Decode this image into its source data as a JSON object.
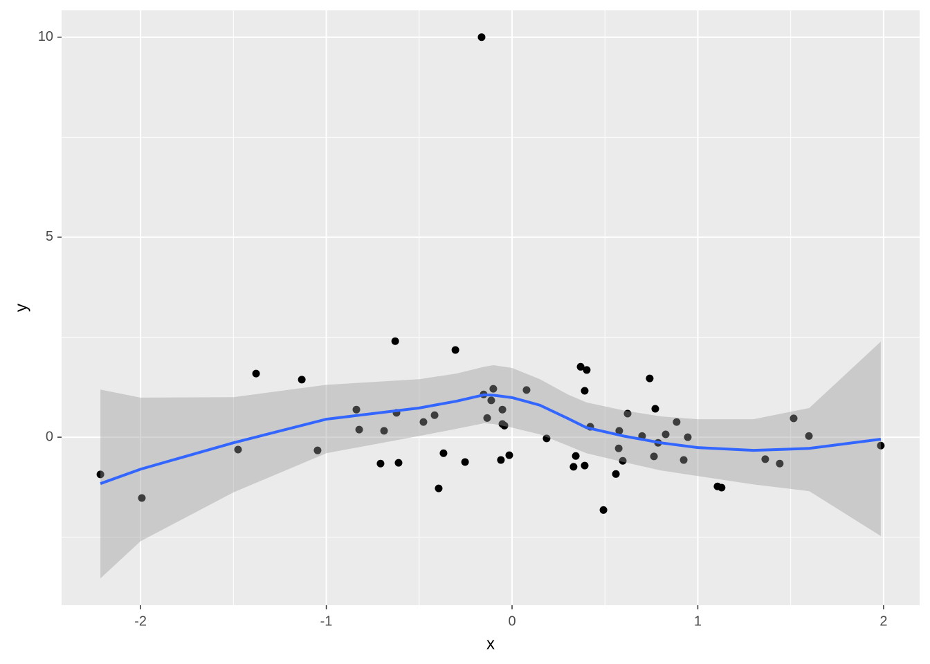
{
  "chart_data": {
    "type": "scatter",
    "x_label": "x",
    "y_label": "y",
    "xlim": [
      -2.425,
      2.194
    ],
    "ylim": [
      -4.2,
      10.67
    ],
    "xticks": [
      -2,
      -1,
      0,
      1,
      2
    ],
    "yticks": [
      0,
      5,
      10
    ],
    "grid": true,
    "series": [
      {
        "color": "#000000",
        "x": [
          -2.216,
          -1.993,
          -1.475,
          -1.378,
          -1.132,
          -1.047,
          -0.838,
          -0.823,
          -0.708,
          -0.689,
          -0.629,
          -0.622,
          -0.611,
          -0.477,
          -0.417,
          -0.395,
          -0.369,
          -0.305,
          -0.253,
          -0.164,
          -0.153,
          -0.134,
          -0.112,
          -0.101,
          -0.06,
          -0.052,
          -0.052,
          -0.041,
          -0.015,
          0.078,
          0.186,
          0.331,
          0.343,
          0.369,
          0.391,
          0.391,
          0.402,
          0.421,
          0.492,
          0.559,
          0.574,
          0.577,
          0.596,
          0.622,
          0.7,
          0.741,
          0.764,
          0.771,
          0.786,
          0.827,
          0.886,
          0.924,
          0.946,
          1.106,
          1.128,
          1.363,
          1.441,
          1.516,
          1.598,
          1.985
        ],
        "values": [
          -0.93,
          -1.52,
          -0.31,
          1.59,
          1.44,
          -0.33,
          0.69,
          0.19,
          -0.66,
          0.16,
          2.4,
          0.61,
          -0.64,
          0.38,
          0.55,
          -1.28,
          -0.4,
          2.18,
          -0.62,
          10.0,
          1.07,
          0.48,
          0.92,
          1.21,
          -0.57,
          0.69,
          0.33,
          0.29,
          -0.45,
          1.18,
          -0.03,
          -0.74,
          -0.47,
          1.76,
          -0.71,
          1.16,
          1.68,
          0.26,
          -1.82,
          -0.92,
          -0.28,
          0.16,
          -0.59,
          0.59,
          0.03,
          1.47,
          -0.48,
          0.71,
          -0.14,
          0.07,
          0.38,
          -0.57,
          0.0,
          -1.23,
          -1.26,
          -0.55,
          -0.66,
          0.47,
          0.03,
          -0.21
        ]
      },
      {
        "type": "smooth",
        "color": "#3366ff",
        "band_color": "#999999",
        "x": [
          -2.216,
          -2,
          -1.5,
          -1,
          -0.5,
          -0.3,
          -0.15,
          -0.1,
          0,
          0.15,
          0.3,
          0.4,
          0.6,
          0.8,
          1,
          1.3,
          1.6,
          1.985
        ],
        "values": [
          -1.16,
          -0.8,
          -0.14,
          0.45,
          0.73,
          0.9,
          1.06,
          1.05,
          0.99,
          0.8,
          0.47,
          0.24,
          0.03,
          -0.14,
          -0.26,
          -0.33,
          -0.28,
          -0.05
        ],
        "upper": [
          1.19,
          0.99,
          1.0,
          1.31,
          1.45,
          1.59,
          1.76,
          1.8,
          1.73,
          1.45,
          1.07,
          0.87,
          0.67,
          0.52,
          0.45,
          0.45,
          0.73,
          2.39
        ],
        "lower": [
          -3.53,
          -2.6,
          -1.38,
          -0.4,
          0.03,
          0.21,
          0.35,
          0.33,
          0.24,
          0.07,
          -0.21,
          -0.4,
          -0.62,
          -0.83,
          -0.97,
          -1.18,
          -1.35,
          -2.47
        ]
      }
    ]
  }
}
